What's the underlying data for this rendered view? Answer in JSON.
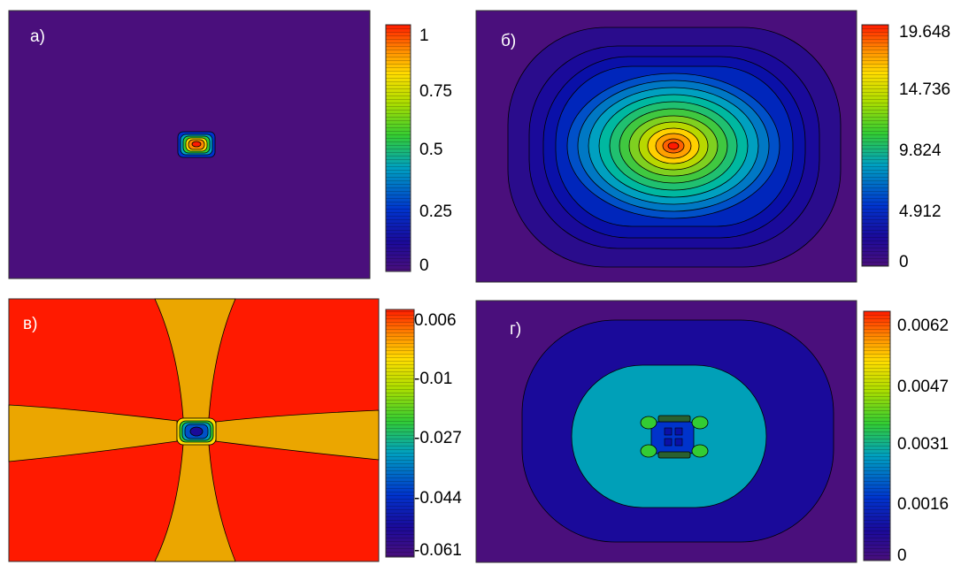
{
  "chart_data": [
    {
      "type": "heatmap",
      "panel_label": "а)",
      "colorbar_ticks": [
        "1",
        "0.75",
        "0.5",
        "0.25",
        "0"
      ],
      "color_range": [
        0,
        1
      ],
      "background_color": "#4a0f7c",
      "peak_value": 1,
      "field_shape": "small square bump at center"
    },
    {
      "type": "heatmap",
      "panel_label": "б)",
      "colorbar_ticks": [
        "19.648",
        "14.736",
        "9.824",
        "4.912",
        "0"
      ],
      "color_range": [
        0,
        19.648
      ],
      "background_color": "#4a0f7c",
      "peak_value": 19.648,
      "field_shape": "broad elliptical bump at center"
    },
    {
      "type": "heatmap",
      "panel_label": "в)",
      "colorbar_ticks": [
        "0.006",
        "-0.01",
        "-0.027",
        "-0.044",
        "-0.061"
      ],
      "color_range": [
        -0.061,
        0.006
      ],
      "background_color": "#ff1a00",
      "lobe_color": "#eba600",
      "field_shape": "cross-shaped lobes with minimum at center"
    },
    {
      "type": "heatmap",
      "panel_label": "г)",
      "colorbar_ticks": [
        "0.0062",
        "0.0047",
        "0.0031",
        "0.0016",
        "0"
      ],
      "color_range": [
        0,
        0.0062
      ],
      "background_color": "#4a0f7c",
      "field_shape": "nested rounded rectangles with small pattern at center"
    }
  ],
  "colors": {
    "scale": [
      "#4a0f7c",
      "#1a0a9a",
      "#0033cc",
      "#00a0c0",
      "#33cc33",
      "#aadd00",
      "#ffdd00",
      "#ff8800",
      "#ff1a00"
    ]
  }
}
